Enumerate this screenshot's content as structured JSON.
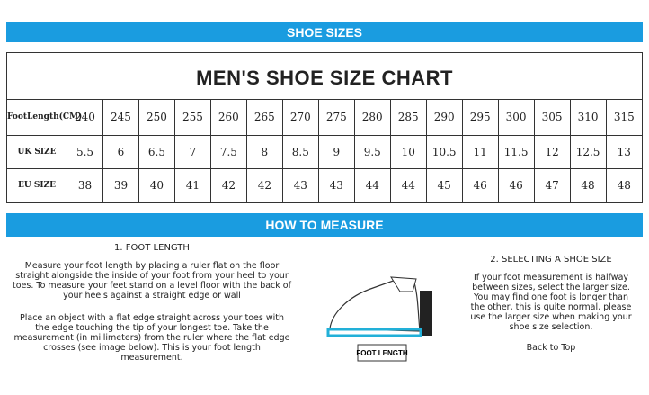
{
  "header": {
    "title": "SHOE SIZES"
  },
  "table": {
    "title": "MEN'S SHOE SIZE CHART",
    "rows": [
      [
        "FootLength(CM)",
        240,
        245,
        250,
        255,
        260,
        265,
        270,
        275,
        280,
        285,
        290,
        295,
        300,
        305,
        310,
        315
      ],
      [
        "UK SIZE",
        5.5,
        6,
        6.5,
        7,
        7.5,
        8,
        8.5,
        9,
        9.5,
        10,
        10.5,
        11,
        11.5,
        12,
        12.5,
        13
      ],
      [
        "EU SIZE",
        38,
        39,
        40,
        41,
        42,
        42,
        43,
        43,
        44,
        44,
        45,
        46,
        46,
        47,
        48,
        48
      ]
    ]
  },
  "measure": {
    "title": "HOW TO MEASURE",
    "foot_length": {
      "heading": "1. FOOT LENGTH",
      "paragraphs": [
        "Measure your foot length by placing a ruler flat on the floor straight alongside the inside of your foot from your heel to your toes. To measure your feet stand on a level floor with the back of your heels against a straight edge or wall",
        "Place an object with a flat edge straight across your toes with the edge touching the tip of your longest toe. Take the measurement (in millimeters) from the ruler where the flat edge crosses (see image below). This is your foot length measurement."
      ]
    },
    "image_label": "FOOT LENGTH",
    "selecting": {
      "heading": "2. SELECTING A SHOE SIZE",
      "paragraph": "If your foot measurement is halfway between sizes, select the larger size. You may find one foot is longer than the other, this is quite normal, please use the larger size when making your shoe size selection.",
      "link": "Back to Top"
    }
  }
}
